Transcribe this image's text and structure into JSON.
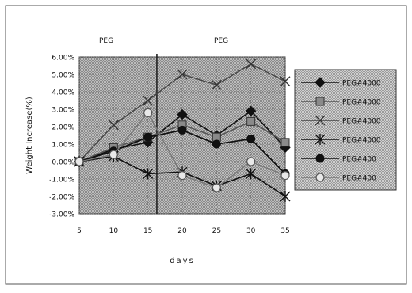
{
  "chart_data": {
    "type": "line",
    "title": "",
    "xlabel": "days",
    "ylabel": "Weight Increase(%)",
    "x": [
      5,
      10,
      15,
      20,
      25,
      30,
      35
    ],
    "x_ticks": [
      "5",
      "10",
      "15",
      "20",
      "25",
      "30",
      "35"
    ],
    "ylim": [
      -3.0,
      6.0
    ],
    "y_ticks": [
      "6.00%",
      "5.00%",
      "4.00%",
      "3.00%",
      "2.00%",
      "1.00%",
      "0.00%",
      "-1.00%",
      "-2.00%",
      "-3.00%"
    ],
    "y_tick_values": [
      6,
      5,
      4,
      3,
      2,
      1,
      0,
      -1,
      -2,
      -3
    ],
    "grid": true,
    "legend_position": "right",
    "annotations": [
      "PEG",
      "PEG"
    ],
    "vertical_marker_x": 16.3,
    "series": [
      {
        "name": "PEG#4000",
        "marker": "diamond",
        "values": [
          0.0,
          0.7,
          1.1,
          2.7,
          1.5,
          2.9,
          0.8
        ]
      },
      {
        "name": "PEG#4000",
        "marker": "square",
        "values": [
          0.0,
          0.8,
          1.4,
          2.1,
          1.4,
          2.3,
          1.1
        ]
      },
      {
        "name": "PEG#4000",
        "marker": "x",
        "values": [
          0.0,
          2.1,
          3.5,
          5.0,
          4.4,
          5.6,
          4.6
        ]
      },
      {
        "name": "PEG#4000",
        "marker": "star",
        "values": [
          0.0,
          0.3,
          -0.7,
          -0.6,
          -1.4,
          -0.7,
          -2.0
        ]
      },
      {
        "name": "PEG#400",
        "marker": "circle",
        "values": [
          0.0,
          0.6,
          1.4,
          1.8,
          1.0,
          1.3,
          -0.7
        ]
      },
      {
        "name": "PEG#400",
        "marker": "open-circle",
        "values": [
          0.0,
          0.4,
          2.8,
          -0.8,
          -1.5,
          0.0,
          -0.8
        ]
      }
    ]
  }
}
